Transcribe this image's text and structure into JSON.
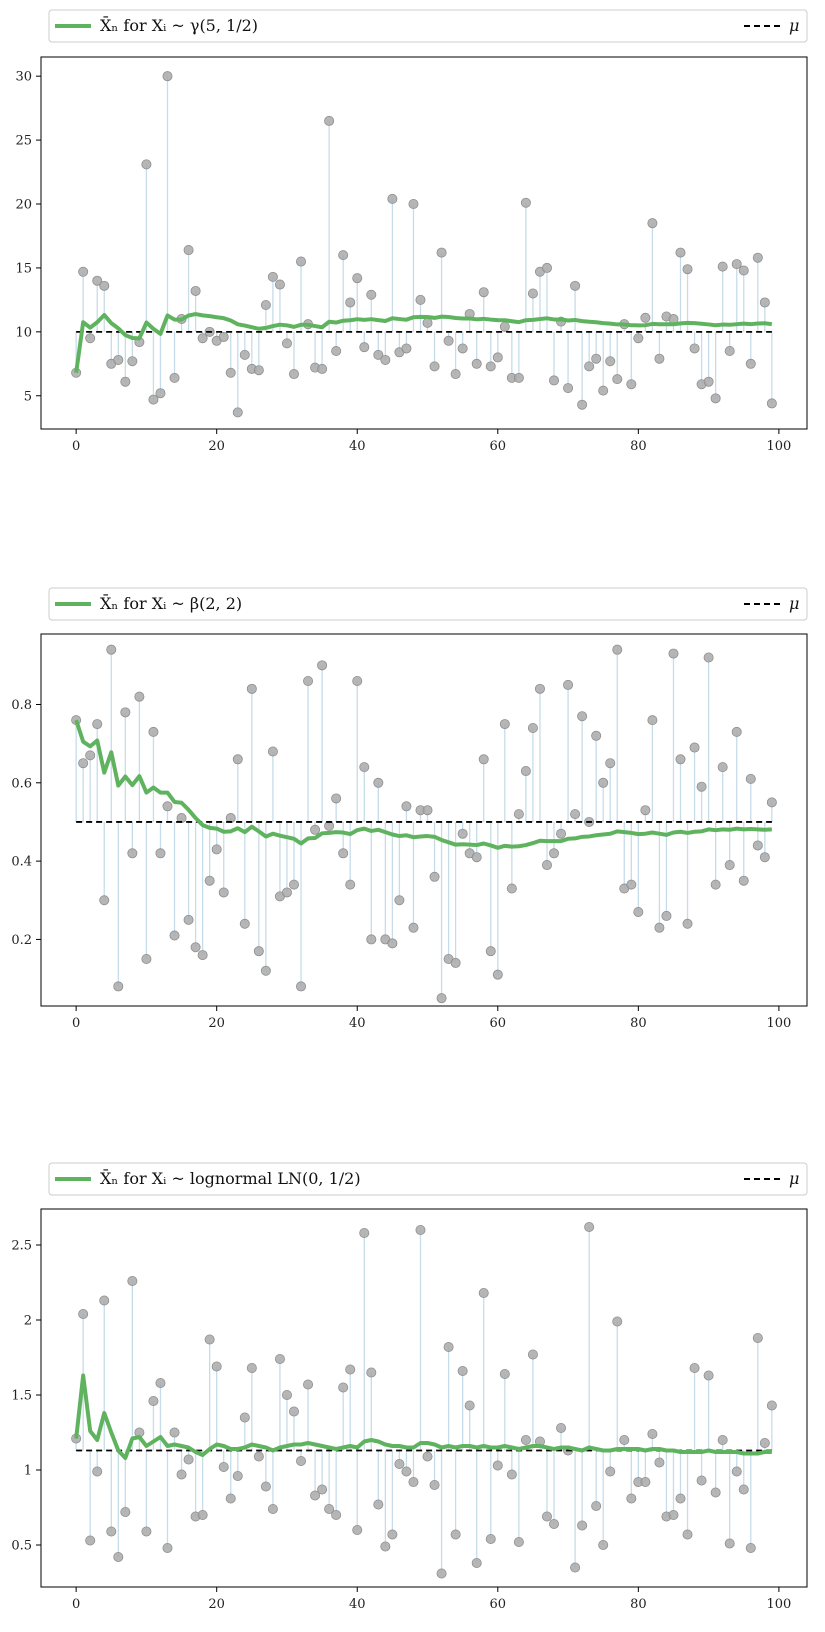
{
  "colors": {
    "mean_line": "#5fb35f",
    "mu_line": "#000000",
    "stem": "#c6dcea",
    "marker": "#a9a9a9",
    "marker_edge": "#8f8f8f",
    "legend_border": "#cccccc",
    "axes": "#000000"
  },
  "chart_data": [
    {
      "type": "line",
      "legend": {
        "series_label": "X̄ₙ for Xᵢ ~ γ(5, 1/2)",
        "mu_label": "μ",
        "placement": "top (above axes)"
      },
      "x": {
        "range": [
          -5,
          104
        ],
        "ticks": [
          0,
          20,
          40,
          60,
          80,
          100
        ]
      },
      "y": {
        "range": [
          2.4,
          31.5
        ],
        "ticks": [
          5,
          10,
          15,
          20,
          25,
          30
        ]
      },
      "mu": 10.0,
      "samples": [
        6.8,
        14.7,
        9.5,
        14.0,
        13.6,
        7.5,
        7.8,
        6.1,
        7.7,
        9.2,
        23.1,
        4.7,
        5.2,
        30.0,
        6.4,
        11.0,
        16.4,
        13.2,
        9.5,
        10.0,
        9.3,
        9.6,
        6.8,
        3.7,
        8.2,
        7.1,
        7.0,
        12.1,
        14.3,
        13.7,
        9.1,
        6.7,
        15.5,
        10.6,
        7.2,
        7.1,
        26.5,
        8.5,
        16.0,
        12.3,
        14.2,
        8.8,
        12.9,
        8.2,
        7.8,
        20.4,
        8.4,
        8.7,
        20.0,
        12.5,
        10.7,
        7.3,
        16.2,
        9.3,
        6.7,
        8.7,
        11.4,
        7.5,
        13.1,
        7.3,
        8.0,
        10.4,
        6.4,
        6.4,
        20.1,
        13.0,
        14.7,
        15.0,
        6.2,
        10.8,
        5.6,
        13.6,
        4.3,
        7.3,
        7.9,
        5.4,
        7.7,
        6.3,
        10.6,
        5.9,
        9.5,
        11.1,
        18.5,
        7.9,
        11.2,
        11.0,
        16.2,
        14.9,
        8.7,
        5.9,
        6.1,
        4.8,
        15.1,
        8.5,
        15.3,
        14.8,
        7.5,
        15.8,
        12.3,
        4.4
      ],
      "running_mean": [
        6.8,
        10.75,
        10.33,
        10.75,
        11.32,
        10.68,
        10.27,
        9.75,
        9.52,
        9.49,
        10.73,
        10.23,
        9.84,
        11.28,
        10.96,
        10.96,
        11.28,
        11.39,
        11.29,
        11.23,
        11.14,
        11.07,
        10.89,
        10.59,
        10.49,
        10.36,
        10.24,
        10.31,
        10.45,
        10.56,
        10.51,
        10.39,
        10.55,
        10.55,
        10.45,
        10.36,
        10.79,
        10.73,
        10.87,
        10.91,
        10.99,
        10.94,
        10.99,
        10.92,
        10.85,
        11.06,
        11.0,
        10.95,
        11.14,
        11.17,
        11.16,
        11.09,
        11.19,
        11.16,
        11.08,
        11.04,
        11.04,
        10.98,
        11.02,
        10.96,
        10.92,
        10.91,
        10.83,
        10.76,
        10.91,
        10.94,
        11.0,
        11.06,
        10.97,
        10.97,
        10.89,
        10.93,
        10.84,
        10.79,
        10.75,
        10.68,
        10.64,
        10.58,
        10.58,
        10.52,
        10.51,
        10.52,
        10.62,
        10.59,
        10.59,
        10.59,
        10.66,
        10.7,
        10.68,
        10.63,
        10.58,
        10.52,
        10.57,
        10.55,
        10.6,
        10.64,
        10.6,
        10.65,
        10.67,
        10.6
      ]
    },
    {
      "type": "line",
      "legend": {
        "series_label": "X̄ₙ for Xᵢ ~ β(2, 2)",
        "mu_label": "μ",
        "placement": "top (above axes)"
      },
      "x": {
        "range": [
          -5,
          104
        ],
        "ticks": [
          0,
          20,
          40,
          60,
          80,
          100
        ]
      },
      "y": {
        "range": [
          0.03,
          0.98
        ],
        "ticks": [
          0.2,
          0.4,
          0.6,
          0.8
        ]
      },
      "mu": 0.5,
      "samples": [
        0.76,
        0.65,
        0.67,
        0.75,
        0.3,
        0.94,
        0.08,
        0.78,
        0.42,
        0.82,
        0.15,
        0.73,
        0.42,
        0.54,
        0.21,
        0.51,
        0.25,
        0.18,
        0.16,
        0.35,
        0.43,
        0.32,
        0.51,
        0.66,
        0.24,
        0.84,
        0.17,
        0.12,
        0.68,
        0.31,
        0.32,
        0.34,
        0.08,
        0.86,
        0.48,
        0.9,
        0.49,
        0.56,
        0.42,
        0.34,
        0.86,
        0.64,
        0.2,
        0.6,
        0.2,
        0.19,
        0.3,
        0.54,
        0.23,
        0.53,
        0.53,
        0.36,
        0.05,
        0.15,
        0.14,
        0.47,
        0.42,
        0.41,
        0.66,
        0.17,
        0.11,
        0.75,
        0.33,
        0.52,
        0.63,
        0.74,
        0.84,
        0.39,
        0.42,
        0.47,
        0.85,
        0.52,
        0.77,
        0.5,
        0.72,
        0.6,
        0.65,
        0.94,
        0.33,
        0.34,
        0.27,
        0.53,
        0.76,
        0.23,
        0.26,
        0.93,
        0.66,
        0.24,
        0.69,
        0.59,
        0.92,
        0.34,
        0.64,
        0.39,
        0.73,
        0.35,
        0.61,
        0.44,
        0.41,
        0.55
      ],
      "running_mean": [
        0.76,
        0.705,
        0.693,
        0.708,
        0.626,
        0.678,
        0.593,
        0.616,
        0.594,
        0.617,
        0.575,
        0.588,
        0.575,
        0.575,
        0.551,
        0.549,
        0.531,
        0.51,
        0.492,
        0.485,
        0.483,
        0.475,
        0.476,
        0.484,
        0.474,
        0.488,
        0.476,
        0.463,
        0.47,
        0.465,
        0.461,
        0.457,
        0.445,
        0.458,
        0.459,
        0.471,
        0.472,
        0.474,
        0.473,
        0.469,
        0.479,
        0.483,
        0.477,
        0.48,
        0.474,
        0.468,
        0.464,
        0.466,
        0.461,
        0.463,
        0.464,
        0.462,
        0.454,
        0.448,
        0.442,
        0.443,
        0.442,
        0.441,
        0.445,
        0.44,
        0.434,
        0.439,
        0.437,
        0.438,
        0.441,
        0.446,
        0.452,
        0.451,
        0.451,
        0.451,
        0.457,
        0.458,
        0.462,
        0.463,
        0.466,
        0.468,
        0.47,
        0.476,
        0.474,
        0.472,
        0.469,
        0.47,
        0.473,
        0.47,
        0.467,
        0.473,
        0.475,
        0.472,
        0.475,
        0.476,
        0.481,
        0.479,
        0.481,
        0.48,
        0.483,
        0.481,
        0.482,
        0.481,
        0.48,
        0.481
      ]
    },
    {
      "type": "line",
      "legend": {
        "series_label": "X̄ₙ for Xᵢ ~ lognormal LN(0, 1/2)",
        "mu_label": "μ",
        "placement": "top (above axes)"
      },
      "x": {
        "range": [
          -5,
          104
        ],
        "ticks": [
          0,
          20,
          40,
          60,
          80,
          100
        ]
      },
      "y": {
        "range": [
          0.22,
          2.74
        ],
        "ticks": [
          0.5,
          1.0,
          1.5,
          2.0,
          2.5
        ]
      },
      "mu": 1.13,
      "samples": [
        1.21,
        2.04,
        0.53,
        0.99,
        2.13,
        0.59,
        0.42,
        0.72,
        2.26,
        1.25,
        0.59,
        1.46,
        1.58,
        0.48,
        1.25,
        0.97,
        1.07,
        0.69,
        0.7,
        1.87,
        1.69,
        1.02,
        0.81,
        0.96,
        1.35,
        1.68,
        1.09,
        0.89,
        0.74,
        1.74,
        1.5,
        1.39,
        1.06,
        1.57,
        0.83,
        0.87,
        0.74,
        0.7,
        1.55,
        1.67,
        0.6,
        2.58,
        1.65,
        0.77,
        0.49,
        0.57,
        1.04,
        0.99,
        0.92,
        2.6,
        1.09,
        0.9,
        0.31,
        1.82,
        0.57,
        1.66,
        1.43,
        0.38,
        2.18,
        0.54,
        1.03,
        1.64,
        0.97,
        0.52,
        1.2,
        1.77,
        1.19,
        0.69,
        0.64,
        1.28,
        1.13,
        0.35,
        0.63,
        2.62,
        0.76,
        0.5,
        0.99,
        1.99,
        1.2,
        0.81,
        0.92,
        0.92,
        1.24,
        1.05,
        0.69,
        0.7,
        0.81,
        0.57,
        1.68,
        0.93,
        1.63,
        0.85,
        1.2,
        0.51,
        0.99,
        0.87,
        0.48,
        1.88,
        1.18,
        1.43
      ],
      "running_mean": [
        1.21,
        1.63,
        1.26,
        1.2,
        1.38,
        1.25,
        1.13,
        1.08,
        1.21,
        1.22,
        1.16,
        1.19,
        1.22,
        1.16,
        1.17,
        1.16,
        1.15,
        1.12,
        1.1,
        1.14,
        1.17,
        1.16,
        1.14,
        1.14,
        1.15,
        1.17,
        1.16,
        1.15,
        1.13,
        1.15,
        1.16,
        1.17,
        1.17,
        1.18,
        1.17,
        1.16,
        1.15,
        1.14,
        1.15,
        1.16,
        1.15,
        1.19,
        1.2,
        1.19,
        1.17,
        1.16,
        1.16,
        1.15,
        1.15,
        1.18,
        1.18,
        1.17,
        1.15,
        1.16,
        1.15,
        1.16,
        1.16,
        1.15,
        1.16,
        1.15,
        1.15,
        1.16,
        1.15,
        1.14,
        1.15,
        1.16,
        1.16,
        1.15,
        1.14,
        1.15,
        1.15,
        1.14,
        1.13,
        1.15,
        1.14,
        1.13,
        1.13,
        1.14,
        1.14,
        1.14,
        1.14,
        1.13,
        1.14,
        1.14,
        1.13,
        1.13,
        1.12,
        1.12,
        1.12,
        1.12,
        1.13,
        1.12,
        1.12,
        1.12,
        1.12,
        1.11,
        1.11,
        1.11,
        1.12,
        1.12
      ]
    }
  ]
}
